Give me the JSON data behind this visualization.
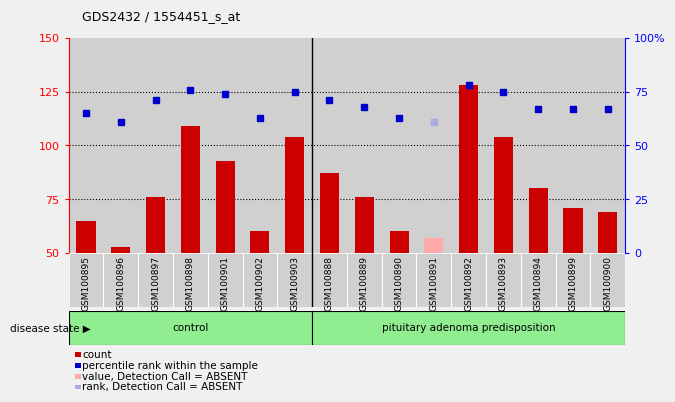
{
  "title": "GDS2432 / 1554451_s_at",
  "samples": [
    "GSM100895",
    "GSM100896",
    "GSM100897",
    "GSM100898",
    "GSM100901",
    "GSM100902",
    "GSM100903",
    "GSM100888",
    "GSM100889",
    "GSM100890",
    "GSM100891",
    "GSM100892",
    "GSM100893",
    "GSM100894",
    "GSM100899",
    "GSM100900"
  ],
  "bar_values": [
    65,
    53,
    76,
    109,
    93,
    60,
    104,
    87,
    76,
    60,
    57,
    128,
    104,
    80,
    71,
    69
  ],
  "bar_colors": [
    "#cc0000",
    "#cc0000",
    "#cc0000",
    "#cc0000",
    "#cc0000",
    "#cc0000",
    "#cc0000",
    "#cc0000",
    "#cc0000",
    "#cc0000",
    "#ffaaaa",
    "#cc0000",
    "#cc0000",
    "#cc0000",
    "#cc0000",
    "#cc0000"
  ],
  "dot_values": [
    115,
    111,
    121,
    126,
    124,
    113,
    125,
    121,
    118,
    113,
    111,
    128,
    125,
    117,
    117,
    117
  ],
  "dot_colors": [
    "#0000cc",
    "#0000cc",
    "#0000cc",
    "#0000cc",
    "#0000cc",
    "#0000cc",
    "#0000cc",
    "#0000cc",
    "#0000cc",
    "#0000cc",
    "#aaaadd",
    "#0000cc",
    "#0000cc",
    "#0000cc",
    "#0000cc",
    "#0000cc"
  ],
  "ylim_left": [
    50,
    150
  ],
  "ylim_right": [
    0,
    100
  ],
  "yticks_left": [
    50,
    75,
    100,
    125,
    150
  ],
  "yticks_right": [
    0,
    25,
    50,
    75,
    100
  ],
  "ytick_labels_right": [
    "0",
    "25",
    "50",
    "75",
    "100%"
  ],
  "control_count": 7,
  "group_labels": [
    "control",
    "pituitary adenoma predisposition"
  ],
  "disease_state_label": "disease state",
  "legend_items": [
    {
      "label": "count",
      "color": "#cc0000"
    },
    {
      "label": "percentile rank within the sample",
      "color": "#0000cc"
    },
    {
      "label": "value, Detection Call = ABSENT",
      "color": "#ffaaaa"
    },
    {
      "label": "rank, Detection Call = ABSENT",
      "color": "#aaaadd"
    }
  ],
  "col_bg_color": "#d0d0d0",
  "plot_bg_color": "#ffffff",
  "fig_bg_color": "#f0f0f0",
  "dotted_lines": [
    75,
    100,
    125
  ],
  "bar_width": 0.55
}
